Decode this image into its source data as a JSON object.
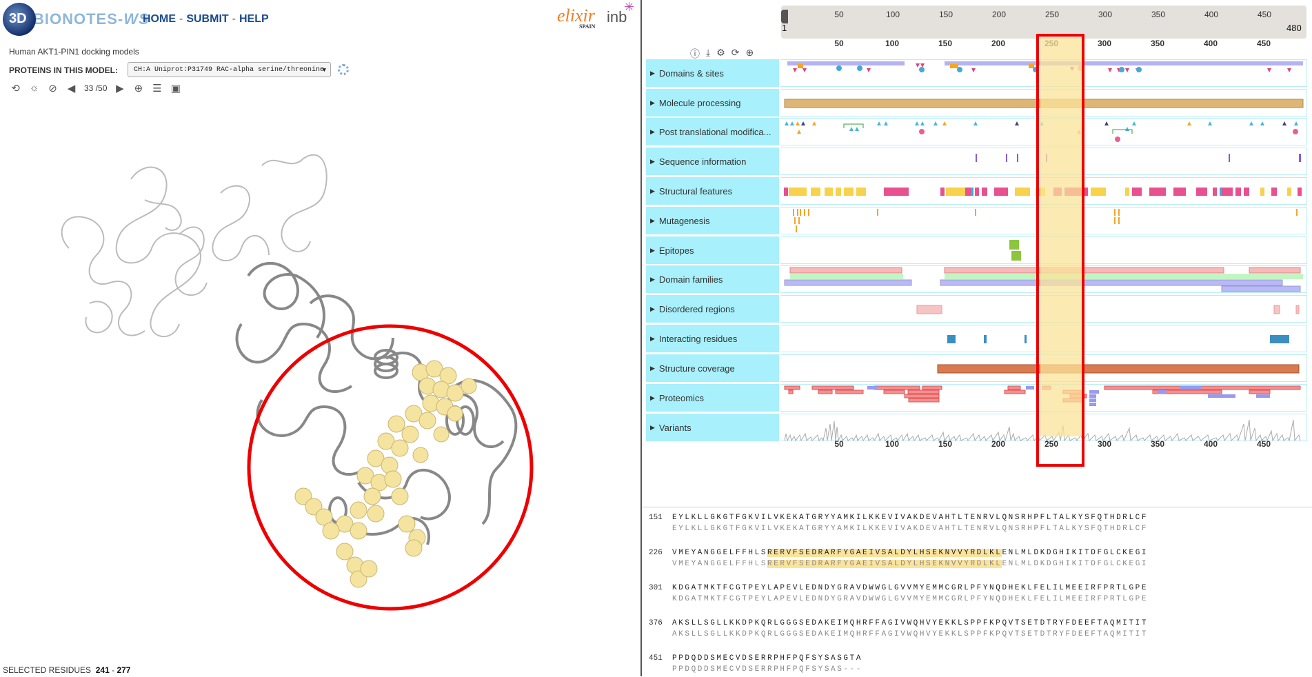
{
  "header": {
    "logo_badge": "3D",
    "logo_text": "BIONOTES-",
    "logo_text_suffix": "WS",
    "nav": [
      "HOME",
      "SUBMIT",
      "HELP"
    ],
    "nav_separator": "-",
    "elixir_label": "elixir",
    "elixir_sub": "SPAIN",
    "inb_label": "inb"
  },
  "model": {
    "title": "Human AKT1-PIN1 docking models",
    "proteins_label": "PROTEINS IN THIS MODEL:",
    "selected_protein": "CH:A Uniprot:P31749 RAC-alpha serine/threonine",
    "counter": "33 /50"
  },
  "toolbar_icons": [
    "refresh-icon",
    "sun-icon",
    "hide-icon",
    "prev-arrow-icon",
    "next-arrow-icon",
    "target-icon",
    "list-icon",
    "camera-icon"
  ],
  "selected_residues": {
    "label": "SELECTED RESIDUES",
    "start": "241",
    "dash": "-",
    "end": "277"
  },
  "ruler": {
    "start": "1",
    "end": "480",
    "ticks": [
      "50",
      "100",
      "150",
      "200",
      "250",
      "300",
      "350",
      "400",
      "450"
    ]
  },
  "feature_icons": [
    "info-icon",
    "download-icon",
    "settings-icon",
    "refresh-icon",
    "zoom-icon"
  ],
  "tracks": [
    {
      "label": "Domains & sites"
    },
    {
      "label": "Molecule processing"
    },
    {
      "label": "Post translational modifica..."
    },
    {
      "label": "Sequence information"
    },
    {
      "label": "Structural features"
    },
    {
      "label": "Mutagenesis"
    },
    {
      "label": "Epitopes"
    },
    {
      "label": "Domain families"
    },
    {
      "label": "Disordered regions"
    },
    {
      "label": "Interacting residues"
    },
    {
      "label": "Structure coverage"
    },
    {
      "label": "Proteomics"
    },
    {
      "label": "Variants"
    }
  ],
  "sequence": [
    {
      "num": "151",
      "seq": "EYLKLLGKGTFGKVILVKEKATGRYYAMKILKKEVIVAKDEVAHTLTENRVLQNSRHPFLTALKYSFQTHDRLCF",
      "sub": "EYLKLLGKGTFGKVILVKEKATGRYYAMKILKKEVIVAKDEVAHTLTENRVLQNSRHPFLTALKYSFQTHDRLCF"
    },
    {
      "num": "226",
      "seq_pre": "VMEYANGGELFFHLS",
      "seq_hl": "RERVFSEDRARFYGAEIVSALDYLHSEKNVVYRDLKL",
      "seq_post": "ENLMLDKDGHIKITDFGLCKEGI",
      "sub_pre": "VMEYANGGELFFHLS",
      "sub_hl": "RERVFSEDRARFYGAEIVSALDYLHSEKNVVYRDLKL",
      "sub_post": "ENLMLDKDGHIKITDFGLCKEGI"
    },
    {
      "num": "301",
      "seq": "KDGATMKTFCGTPEYLAPEVLEDNDYGRAVDWWGLGVVMYEMMCGRLPFYNQDHEKLFELILMEEIRFPRTLGPE",
      "sub": "KDGATMKTFCGTPEYLAPEVLEDNDYGRAVDWWGLGVVMYEMMCGRLPFYNQDHEKLFELILMEEIRFPRTLGPE"
    },
    {
      "num": "376",
      "seq": "AKSLLSGLLKKDPKQRLGGGSEDAKEIMQHRFFAGIVWQHVYEKKLSPPFKPQVTSETDTRYFDEEFTAQMITIT",
      "sub": "AKSLLSGLLKKDPKQRLGGGSEDAKEIMQHRFFAGIVWQHVYEKKLSPPFKPQVTSETDTRYFDEEFTAQMITIT"
    },
    {
      "num": "451",
      "seq": "PPDQDDSMECVDSERRPHFPQFSYSASGTA",
      "sub": "PPDQDDSMECVDSERRPHFPQFSYSAS---"
    }
  ]
}
